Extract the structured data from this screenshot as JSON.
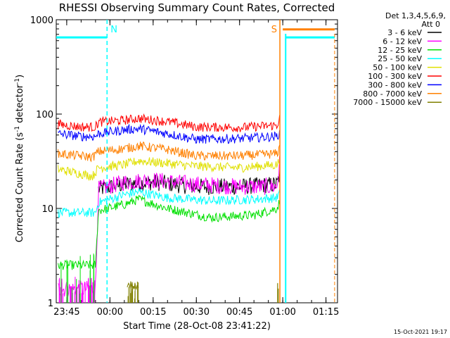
{
  "chart_data": {
    "type": "line",
    "title": "RHESSI Observing Summary Count Rates, Corrected",
    "xlabel": "Start Time (28-Oct-08 23:41:22)",
    "ylabel_parts": [
      "Corrected Count Rate (s",
      "-1",
      " detector",
      "-1",
      ")"
    ],
    "y_scale": "log",
    "ylim": [
      1,
      1000
    ],
    "xlim": [
      "23:41:22",
      "01:19:00"
    ],
    "x_ticks": [
      "23:45",
      "00:00",
      "00:15",
      "00:30",
      "00:45",
      "01:00",
      "01:15"
    ],
    "y_ticks": [
      "1",
      "10",
      "100",
      "1000"
    ],
    "legend_header": [
      "Det 1,3,4,5,6,9,",
      "Att 0"
    ],
    "legend_placement": "right",
    "stamp": "15-Oct-2021 19:17",
    "markers": [
      {
        "label": "N",
        "time": "23:59",
        "color": "#00ffff",
        "style": "dashed"
      },
      {
        "label": "S",
        "time": "00:59",
        "color": "#ff8000",
        "style": "solid"
      }
    ],
    "series": [
      {
        "name": "3 - 6 keV",
        "color": "#000000",
        "points": [
          [
            "23:43",
            0
          ],
          [
            "23:55",
            0
          ],
          [
            "23:56",
            16
          ],
          [
            "00:05",
            18
          ],
          [
            "00:15",
            19
          ],
          [
            "00:30",
            17
          ],
          [
            "00:45",
            17
          ],
          [
            "00:58",
            18
          ],
          [
            "00:59",
            23
          ]
        ]
      },
      {
        "name": "6 - 12 keV",
        "color": "#ff00ff",
        "points": [
          [
            "23:42",
            1.4
          ],
          [
            "23:55",
            1.4
          ],
          [
            "23:56",
            16
          ],
          [
            "00:05",
            19
          ],
          [
            "00:15",
            20
          ],
          [
            "00:30",
            18
          ],
          [
            "00:45",
            17
          ],
          [
            "00:58",
            17
          ],
          [
            "00:59",
            32
          ]
        ]
      },
      {
        "name": "12 - 25 keV",
        "color": "#00e000",
        "points": [
          [
            "23:42",
            2.5
          ],
          [
            "23:55",
            2.5
          ],
          [
            "23:56",
            9.5
          ],
          [
            "00:05",
            11
          ],
          [
            "00:10",
            12.5
          ],
          [
            "00:20",
            10
          ],
          [
            "00:35",
            8
          ],
          [
            "00:50",
            8.5
          ],
          [
            "00:58",
            10
          ],
          [
            "00:59",
            12
          ]
        ]
      },
      {
        "name": "25 - 50 keV",
        "color": "#00ffff",
        "points": [
          [
            "23:42",
            9
          ],
          [
            "23:55",
            9
          ],
          [
            "23:56",
            11.5
          ],
          [
            "00:05",
            14
          ],
          [
            "00:10",
            15
          ],
          [
            "00:20",
            13
          ],
          [
            "00:35",
            12
          ],
          [
            "00:50",
            12.5
          ],
          [
            "00:58",
            13
          ],
          [
            "00:59",
            15
          ]
        ]
      },
      {
        "name": "50 - 100 keV",
        "color": "#e0e000",
        "points": [
          [
            "23:42",
            26
          ],
          [
            "23:54",
            22
          ],
          [
            "23:56",
            27
          ],
          [
            "00:05",
            29
          ],
          [
            "00:10",
            32
          ],
          [
            "00:20",
            30
          ],
          [
            "00:30",
            28
          ],
          [
            "00:45",
            27
          ],
          [
            "00:58",
            29
          ],
          [
            "00:59",
            33
          ]
        ]
      },
      {
        "name": "100 - 300 keV",
        "color": "#ff0000",
        "points": [
          [
            "23:42",
            78
          ],
          [
            "23:50",
            73
          ],
          [
            "23:55",
            73
          ],
          [
            "23:56",
            82
          ],
          [
            "00:05",
            86
          ],
          [
            "00:10",
            90
          ],
          [
            "00:20",
            83
          ],
          [
            "00:30",
            73
          ],
          [
            "00:45",
            72
          ],
          [
            "00:58",
            76
          ],
          [
            "00:59",
            92
          ]
        ]
      },
      {
        "name": "300 - 800 keV",
        "color": "#0000ff",
        "points": [
          [
            "23:42",
            62
          ],
          [
            "23:50",
            58
          ],
          [
            "23:55",
            58
          ],
          [
            "23:56",
            62
          ],
          [
            "00:05",
            68
          ],
          [
            "00:10",
            70
          ],
          [
            "00:20",
            62
          ],
          [
            "00:30",
            54
          ],
          [
            "00:45",
            55
          ],
          [
            "00:58",
            58
          ],
          [
            "00:59",
            65
          ]
        ]
      },
      {
        "name": "800 - 7000 keV",
        "color": "#ff8000",
        "points": [
          [
            "23:42",
            38
          ],
          [
            "23:54",
            35
          ],
          [
            "23:56",
            40
          ],
          [
            "00:05",
            43
          ],
          [
            "00:10",
            46
          ],
          [
            "00:20",
            42
          ],
          [
            "00:30",
            36
          ],
          [
            "00:45",
            36
          ],
          [
            "00:58",
            38
          ],
          [
            "00:59",
            45
          ]
        ]
      },
      {
        "name": "7000 - 15000 keV",
        "color": "#808000",
        "points": [
          [
            "00:06",
            1.6
          ],
          [
            "00:10",
            1.4
          ]
        ]
      }
    ],
    "overlay_lines": [
      {
        "color": "#00ffff",
        "points": [
          [
            "23:41:22",
            650
          ],
          [
            "23:59",
            650
          ]
        ]
      },
      {
        "color": "#ff8000",
        "points": [
          [
            "01:00",
            790
          ],
          [
            "01:18",
            790
          ]
        ]
      },
      {
        "color": "#00ffff",
        "points": [
          [
            "01:01",
            650
          ],
          [
            "01:18",
            650
          ]
        ]
      }
    ]
  }
}
